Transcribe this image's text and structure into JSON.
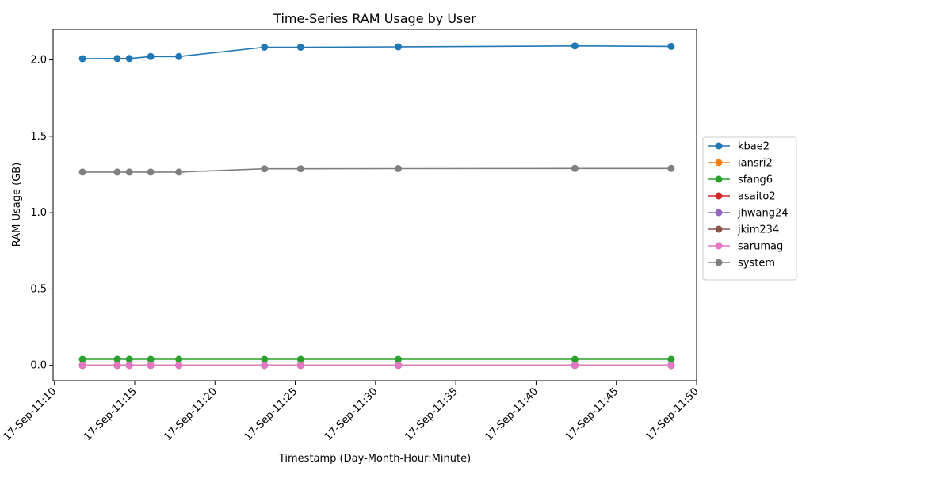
{
  "chart_data": {
    "type": "line",
    "title": "Time-Series RAM Usage by User",
    "xlabel": "Timestamp (Day-Month-Hour:Minute)",
    "ylabel": "RAM Usage (GB)",
    "grid": false,
    "legend_position": "right",
    "x_tick_labels": [
      "17-Sep-11:10",
      "17-Sep-11:15",
      "17-Sep-11:20",
      "17-Sep-11:25",
      "17-Sep-11:30",
      "17-Sep-11:35",
      "17-Sep-11:40",
      "17-Sep-11:45",
      "17-Sep-11:50"
    ],
    "y_tick_labels": [
      "0.0",
      "0.5",
      "1.0",
      "1.5",
      "2.0"
    ],
    "x": [
      "17-Sep-11:11:45",
      "17-Sep-11:13:55",
      "17-Sep-11:14:40",
      "17-Sep-11:16:00",
      "17-Sep-11:17:45",
      "17-Sep-11:23:05",
      "17-Sep-11:25:20",
      "17-Sep-11:31:25",
      "17-Sep-11:42:25",
      "17-Sep-11:48:25"
    ],
    "series": [
      {
        "name": "kbae2",
        "color": "#1f77b4",
        "values": [
          2.008,
          2.009,
          2.009,
          2.022,
          2.022,
          2.083,
          2.083,
          2.086,
          2.092,
          2.089
        ]
      },
      {
        "name": "iansri2",
        "color": "#ff7f0e",
        "values": [
          0.0,
          0.0,
          0.0,
          0.0,
          0.0,
          0.0,
          0.0,
          0.0,
          0.0,
          0.0
        ]
      },
      {
        "name": "sfang6",
        "color": "#2ca02c",
        "values": [
          0.04,
          0.04,
          0.04,
          0.04,
          0.04,
          0.04,
          0.04,
          0.04,
          0.04,
          0.04
        ]
      },
      {
        "name": "asaito2",
        "color": "#d62728",
        "values": [
          0.0,
          0.0,
          0.0,
          0.0,
          0.0,
          0.0,
          0.0,
          0.0,
          0.0,
          0.0
        ]
      },
      {
        "name": "jhwang24",
        "color": "#9467bd",
        "values": [
          0.0,
          0.0,
          0.0,
          0.0,
          0.0,
          0.0,
          0.0,
          0.0,
          0.0,
          0.0
        ]
      },
      {
        "name": "jkim234",
        "color": "#8c564b",
        "values": [
          0.0,
          0.0,
          0.0,
          0.0,
          0.0,
          0.0,
          0.0,
          0.0,
          0.0,
          0.0
        ]
      },
      {
        "name": "sarumag",
        "color": "#e377c2",
        "values": [
          0.0,
          0.0,
          0.0,
          0.0,
          0.0,
          0.0,
          0.0,
          0.0,
          0.0,
          0.0
        ]
      },
      {
        "name": "system",
        "color": "#7f7f7f",
        "values": [
          1.266,
          1.266,
          1.266,
          1.266,
          1.266,
          1.288,
          1.288,
          1.289,
          1.29,
          1.29
        ]
      }
    ],
    "xlim": [
      "17-Sep-11:09:55",
      "17-Sep-11:50:00"
    ],
    "ylim": [
      -0.1,
      2.2
    ]
  }
}
